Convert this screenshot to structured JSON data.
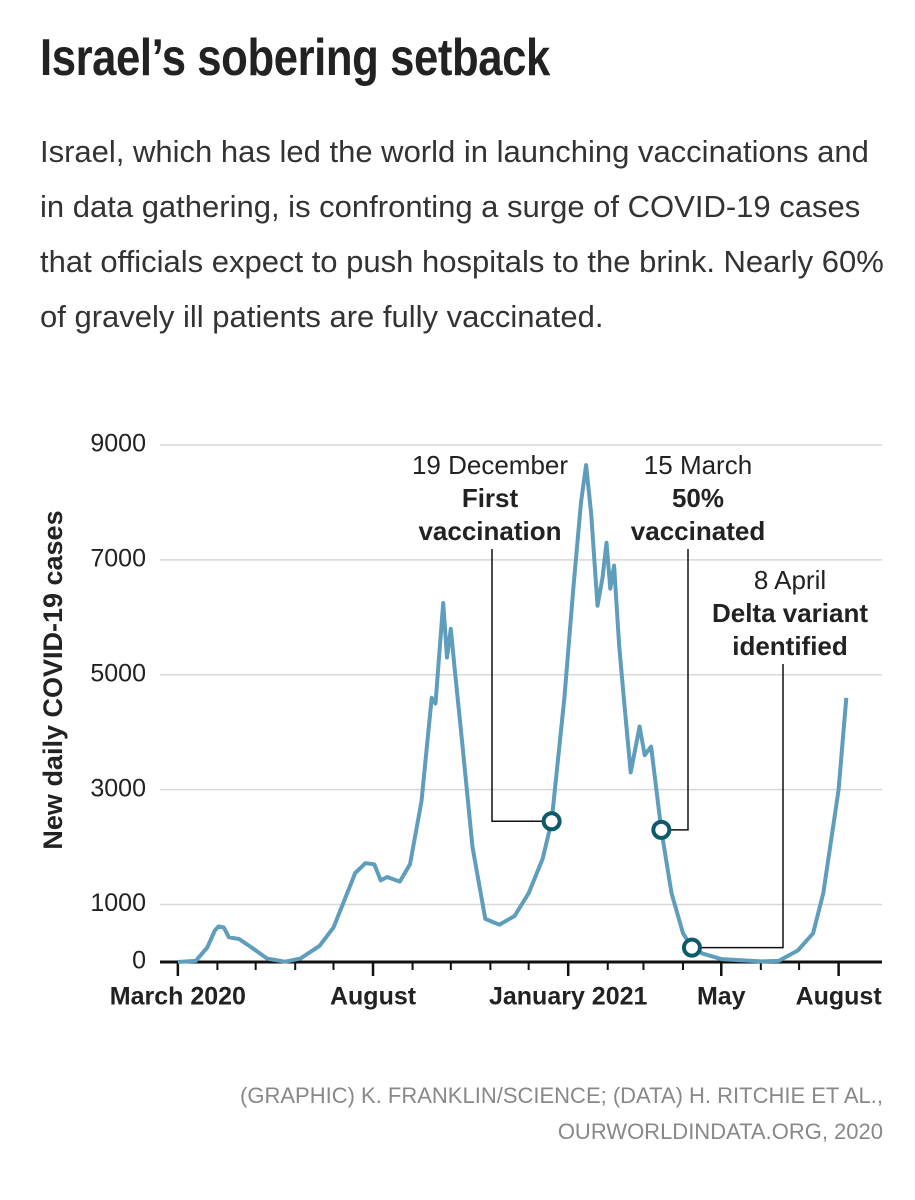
{
  "chart_data": {
    "type": "line",
    "title": "Israel’s sobering setback",
    "subtitle": "Israel, which has led the world in launching vaccinations and in data gathering, is confronting a surge of COVID-19 cases that officials expect to push hospitals to the brink. Nearly 60% of gravely ill patients are fully vaccinated.",
    "y_label": "New daily COVID-19 cases",
    "source": "(GRAPHIC) K. FRANKLIN/SCIENCE; (DATA) H. RITCHIE ET AL., OURWORLDINDATA.ORG, 2020",
    "x": [
      "2020-03-01",
      "2020-03-15",
      "2020-03-24",
      "2020-03-30",
      "2020-04-02",
      "2020-04-06",
      "2020-04-10",
      "2020-04-18",
      "2020-04-28",
      "2020-05-10",
      "2020-05-24",
      "2020-06-05",
      "2020-06-20",
      "2020-07-01",
      "2020-07-10",
      "2020-07-18",
      "2020-07-26",
      "2020-08-02",
      "2020-08-07",
      "2020-08-12",
      "2020-08-22",
      "2020-08-30",
      "2020-09-08",
      "2020-09-16",
      "2020-09-19",
      "2020-09-25",
      "2020-09-28",
      "2020-10-01",
      "2020-10-04",
      "2020-10-10",
      "2020-10-18",
      "2020-10-28",
      "2020-11-08",
      "2020-11-20",
      "2020-12-01",
      "2020-12-12",
      "2020-12-19",
      "2020-12-29",
      "2021-01-05",
      "2021-01-11",
      "2021-01-15",
      "2021-01-19",
      "2021-01-24",
      "2021-01-28",
      "2021-01-31",
      "2021-02-03",
      "2021-02-06",
      "2021-02-10",
      "2021-02-14",
      "2021-02-19",
      "2021-02-26",
      "2021-03-02",
      "2021-03-07",
      "2021-03-15",
      "2021-03-23",
      "2021-04-01",
      "2021-04-08",
      "2021-04-16",
      "2021-05-01",
      "2021-06-01",
      "2021-06-15",
      "2021-06-30",
      "2021-07-12",
      "2021-07-20",
      "2021-08-01",
      "2021-08-07"
    ],
    "series": [
      {
        "name": "New daily COVID-19 cases",
        "color": "#5e9dbc",
        "values": [
          0,
          20,
          250,
          550,
          620,
          600,
          430,
          400,
          250,
          60,
          5,
          60,
          280,
          600,
          1100,
          1550,
          1720,
          1700,
          1420,
          1480,
          1400,
          1700,
          2800,
          4600,
          4500,
          6250,
          5300,
          5800,
          5100,
          3800,
          2000,
          750,
          650,
          800,
          1200,
          1800,
          2450,
          4600,
          6500,
          8000,
          8650,
          7800,
          6200,
          6700,
          7300,
          6500,
          6900,
          5500,
          4500,
          3300,
          4100,
          3600,
          3750,
          2300,
          1200,
          500,
          250,
          150,
          50,
          10,
          20,
          200,
          500,
          1200,
          3000,
          4600
        ]
      }
    ],
    "xlim": [
      "2020-02-16",
      "2021-09-04"
    ],
    "xticks": [
      {
        "value": "2020-03-01",
        "label": "March 2020"
      },
      {
        "value": "2020-08-01",
        "label": "August"
      },
      {
        "value": "2021-01-01",
        "label": "January 2021"
      },
      {
        "value": "2021-05-01",
        "label": "May"
      },
      {
        "value": "2021-08-01",
        "label": "August"
      }
    ],
    "xminorticks": [
      "2020-04-01",
      "2020-05-01",
      "2020-06-01",
      "2020-07-01",
      "2020-09-01",
      "2020-10-01",
      "2020-11-01",
      "2020-12-01",
      "2021-02-01",
      "2021-03-01",
      "2021-04-01",
      "2021-06-01",
      "2021-07-01"
    ],
    "ylim": [
      0,
      9000
    ],
    "yticks": [
      0,
      1000,
      3000,
      5000,
      7000,
      9000
    ],
    "grid": true,
    "annotations": [
      {
        "date_label": "19 December",
        "text": [
          "First",
          "vaccination"
        ],
        "x": "2020-12-19",
        "y": 2450,
        "color": "#0e5a6b"
      },
      {
        "date_label": "15 March",
        "text": [
          "50%",
          "vaccinated"
        ],
        "x": "2021-03-15",
        "y": 2300,
        "color": "#0e5a6b"
      },
      {
        "date_label": "8 April",
        "text": [
          "Delta variant",
          "identified"
        ],
        "x": "2021-04-08",
        "y": 250,
        "color": "#0e5a6b"
      }
    ]
  }
}
